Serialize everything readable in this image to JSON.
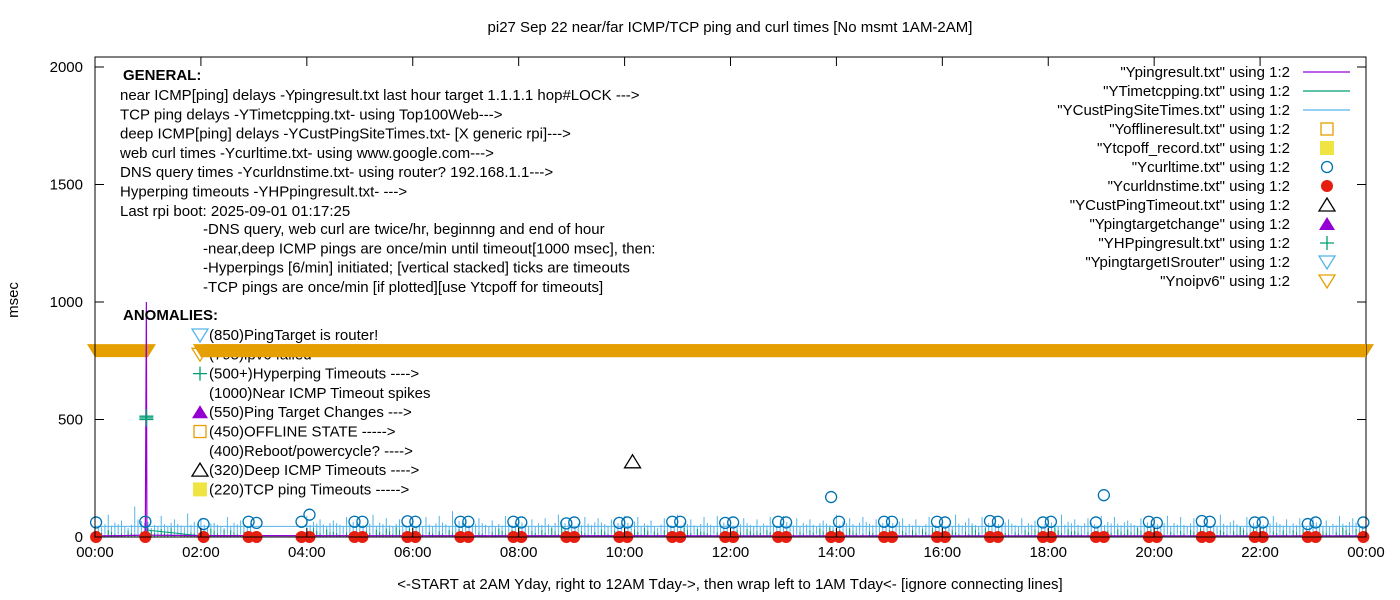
{
  "chart_data": {
    "type": "scatter",
    "title": "pi27 Sep 22  near/far ICMP/TCP ping and curl times [No msmt 1AM-2AM]",
    "xlabel": "<-START at 2AM Yday, right to 12AM Tday->, then wrap left to 1AM Tday<- [ignore connecting lines]",
    "ylabel": "msec",
    "xlim": [
      0,
      24
    ],
    "ylim": [
      0,
      2050
    ],
    "xticks": [
      "00:00",
      "02:00",
      "04:00",
      "06:00",
      "08:00",
      "10:00",
      "12:00",
      "14:00",
      "16:00",
      "18:00",
      "20:00",
      "22:00",
      "00:00"
    ],
    "yticks": [
      "0",
      "500",
      "1000",
      "1500",
      "2000"
    ],
    "grid": false,
    "legend_placement": "top-right",
    "legend": [
      {
        "label": "\"Ypingresult.txt\" using 1:2",
        "kind": "line",
        "color": "#9400d3"
      },
      {
        "label": "\"YTimetcpping.txt\" using 1:2",
        "kind": "line",
        "color": "#009e73"
      },
      {
        "label": "\"YCustPingSiteTimes.txt\" using 1:2",
        "kind": "line",
        "color": "#56b4e9"
      },
      {
        "label": "\"Yofflineresult.txt\" using 1:2",
        "kind": "open-square",
        "color": "#e69f00"
      },
      {
        "label": "\"Ytcpoff_record.txt\" using 1:2",
        "kind": "filled-square",
        "color": "#f0e442"
      },
      {
        "label": "\"Ycurltime.txt\" using 1:2",
        "kind": "open-circle",
        "color": "#0072b2"
      },
      {
        "label": "\"Ycurldnstime.txt\" using 1:2",
        "kind": "filled-circle",
        "color": "#e51e10"
      },
      {
        "label": "\"YCustPingTimeout.txt\" using 1:2",
        "kind": "open-triangle",
        "color": "#000000"
      },
      {
        "label": "\"Ypingtargetchange\" using 1:2",
        "kind": "filled-triangle",
        "color": "#9400d3"
      },
      {
        "label": "\"YHPpingresult.txt\" using 1:2",
        "kind": "plus",
        "color": "#009e73"
      },
      {
        "label": "\"YpingtargetISrouter\" using 1:2",
        "kind": "open-down-triangle",
        "color": "#56b4e9"
      },
      {
        "label": "\"Ynoipv6\" using 1:2",
        "kind": "open-down-triangle",
        "color": "#e69f00"
      }
    ],
    "general_title": "GENERAL:",
    "general_lines": [
      "near ICMP[ping] delays -Ypingresult.txt last hour target 1.1.1.1 hop#LOCK --->",
      "TCP ping delays -YTimetcpping.txt- using Top100Web--->",
      "deep ICMP[ping] delays -YCustPingSiteTimes.txt- [X generic rpi]--->",
      "web curl times -Ycurltime.txt- using www.google.com--->",
      "DNS query times -Ycurldnstime.txt- using router? 192.168.1.1--->",
      "Hyperping timeouts -YHPpingresult.txt- --->",
      "Last rpi boot: 2025-09-01 01:17:25"
    ],
    "general_notes": [
      "-DNS query, web curl are twice/hr, beginnng and end of hour",
      "-near,deep ICMP pings are once/min until timeout[1000 msec], then:",
      "  -Hyperpings [6/min] initiated; [vertical stacked] ticks are timeouts",
      "-TCP pings are once/min [if plotted][use Ytcpoff for timeouts]"
    ],
    "anomalies_title": "ANOMALIES:",
    "anomalies": [
      {
        "label": "(850)PingTarget is router!",
        "marker": "open-down-triangle",
        "color": "#56b4e9"
      },
      {
        "label": "(795)ipv6 failed",
        "marker": "open-down-triangle",
        "color": "#e69f00"
      },
      {
        "label": "(500+)Hyperping Timeouts ---->",
        "marker": "plus",
        "color": "#009e73"
      },
      {
        "label": "(1000)Near ICMP Timeout spikes",
        "marker": "",
        "color": ""
      },
      {
        "label": "(550)Ping Target Changes --->",
        "marker": "filled-triangle",
        "color": "#9400d3"
      },
      {
        "label": "(450)OFFLINE STATE ----->",
        "marker": "open-square",
        "color": "#e69f00"
      },
      {
        "label": "(400)Reboot/powercycle? ---->",
        "marker": "",
        "color": ""
      },
      {
        "label": "(320)Deep ICMP Timeouts ---->",
        "marker": "open-triangle",
        "color": "#000000"
      },
      {
        "label": "(220)TCP ping Timeouts ----->",
        "marker": "filled-square",
        "color": "#f0e442"
      }
    ],
    "series": {
      "curltime": [
        [
          0.02,
          62
        ],
        [
          0.95,
          65
        ],
        [
          2.05,
          55
        ],
        [
          2.9,
          65
        ],
        [
          3.05,
          60
        ],
        [
          3.9,
          65
        ],
        [
          4.05,
          95
        ],
        [
          4.9,
          65
        ],
        [
          5.05,
          65
        ],
        [
          5.9,
          67
        ],
        [
          6.05,
          65
        ],
        [
          6.9,
          65
        ],
        [
          7.05,
          65
        ],
        [
          7.9,
          65
        ],
        [
          8.05,
          62
        ],
        [
          8.9,
          58
        ],
        [
          9.05,
          62
        ],
        [
          9.9,
          60
        ],
        [
          10.05,
          62
        ],
        [
          10.9,
          65
        ],
        [
          11.05,
          65
        ],
        [
          11.9,
          60
        ],
        [
          12.05,
          62
        ],
        [
          12.9,
          65
        ],
        [
          13.05,
          62
        ],
        [
          13.9,
          170
        ],
        [
          14.05,
          65
        ],
        [
          14.9,
          65
        ],
        [
          15.05,
          65
        ],
        [
          15.9,
          65
        ],
        [
          16.05,
          62
        ],
        [
          16.9,
          68
        ],
        [
          17.05,
          65
        ],
        [
          17.9,
          62
        ],
        [
          18.05,
          65
        ],
        [
          18.9,
          62
        ],
        [
          19.05,
          178
        ],
        [
          19.9,
          65
        ],
        [
          20.05,
          60
        ],
        [
          20.9,
          68
        ],
        [
          21.05,
          65
        ],
        [
          21.9,
          62
        ],
        [
          22.05,
          62
        ],
        [
          22.9,
          55
        ],
        [
          23.05,
          62
        ],
        [
          23.95,
          62
        ]
      ],
      "curldnstime": [
        [
          0.02,
          0
        ],
        [
          0.95,
          0
        ],
        [
          2.05,
          0
        ],
        [
          2.9,
          0
        ],
        [
          3.05,
          0
        ],
        [
          3.9,
          0
        ],
        [
          4.05,
          0
        ],
        [
          4.9,
          0
        ],
        [
          5.05,
          0
        ],
        [
          5.9,
          0
        ],
        [
          6.05,
          0
        ],
        [
          6.9,
          0
        ],
        [
          7.05,
          0
        ],
        [
          7.9,
          0
        ],
        [
          8.05,
          0
        ],
        [
          8.9,
          0
        ],
        [
          9.05,
          0
        ],
        [
          9.9,
          0
        ],
        [
          10.05,
          0
        ],
        [
          10.9,
          0
        ],
        [
          11.05,
          0
        ],
        [
          11.9,
          0
        ],
        [
          12.05,
          0
        ],
        [
          12.9,
          0
        ],
        [
          13.05,
          0
        ],
        [
          13.9,
          0
        ],
        [
          14.05,
          0
        ],
        [
          14.9,
          0
        ],
        [
          15.05,
          0
        ],
        [
          15.9,
          0
        ],
        [
          16.05,
          0
        ],
        [
          16.9,
          0
        ],
        [
          17.05,
          0
        ],
        [
          17.9,
          0
        ],
        [
          18.05,
          0
        ],
        [
          18.9,
          0
        ],
        [
          19.05,
          0
        ],
        [
          19.9,
          0
        ],
        [
          20.05,
          0
        ],
        [
          20.9,
          0
        ],
        [
          21.05,
          0
        ],
        [
          21.9,
          0
        ],
        [
          22.05,
          0
        ],
        [
          22.9,
          0
        ],
        [
          23.05,
          0
        ],
        [
          23.95,
          0
        ]
      ],
      "custpingtimeout": [
        [
          10.15,
          320
        ]
      ],
      "hpping": [
        [
          0.97,
          500
        ],
        [
          0.97,
          507
        ],
        [
          0.97,
          514
        ]
      ],
      "pingresult": [
        [
          0.0,
          5
        ],
        [
          0.5,
          6
        ],
        [
          0.95,
          8
        ],
        [
          0.97,
          1000
        ],
        [
          0.98,
          8
        ],
        [
          2.0,
          6
        ],
        [
          12.0,
          5
        ],
        [
          24.0,
          5
        ]
      ],
      "noipv6_value": 795,
      "noipv6_ranges": [
        [
          0.0,
          1.0
        ],
        [
          2.0,
          24.0
        ]
      ],
      "custping_base": 45,
      "custping_peaks": [
        60,
        95,
        70,
        130,
        65,
        90,
        75,
        100,
        80,
        60,
        85,
        70,
        0,
        0,
        0,
        0,
        90,
        75,
        70,
        85,
        65,
        95,
        80,
        75,
        70,
        85,
        90,
        110,
        75,
        80,
        70,
        90,
        85,
        75,
        80,
        95,
        70,
        85,
        80,
        75,
        90,
        85,
        70,
        80,
        95,
        75,
        85,
        90,
        70,
        80,
        75,
        85,
        90,
        80,
        75,
        70,
        95,
        80,
        85,
        75,
        90,
        80,
        75,
        85,
        70,
        95,
        80,
        85,
        90,
        75,
        80,
        70,
        85,
        95,
        75,
        80,
        90,
        85,
        70,
        80,
        75,
        90,
        85,
        80,
        75,
        95,
        70,
        85,
        80,
        90,
        75,
        80,
        85,
        70,
        90,
        80
      ],
      "tcp_peaks": [
        30,
        25,
        40,
        20,
        35,
        28,
        0,
        0,
        38,
        22,
        30,
        42,
        26,
        34,
        20,
        36,
        30,
        44,
        24,
        32,
        38,
        28,
        40,
        22,
        34,
        30,
        26,
        42,
        36,
        24,
        30,
        38,
        28,
        44,
        20,
        34,
        40,
        26,
        32,
        38,
        24,
        36,
        30,
        42,
        28,
        34,
        26,
        40
      ]
    }
  }
}
